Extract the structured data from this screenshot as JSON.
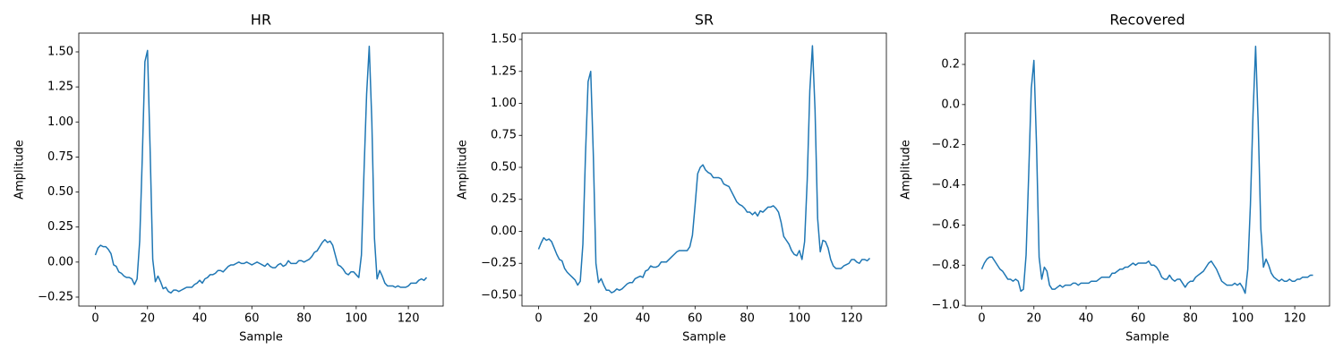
{
  "chart_data": [
    {
      "type": "line",
      "title": "HR",
      "xlabel": "Sample",
      "ylabel": "Amplitude",
      "color": "#1f77b4",
      "x": [
        0,
        1,
        2,
        3,
        4,
        5,
        6,
        7,
        8,
        9,
        10,
        11,
        12,
        13,
        14,
        15,
        16,
        17,
        18,
        19,
        20,
        21,
        22,
        23,
        24,
        25,
        26,
        27,
        28,
        29,
        30,
        31,
        32,
        33,
        34,
        35,
        36,
        37,
        38,
        39,
        40,
        41,
        42,
        43,
        44,
        45,
        46,
        47,
        48,
        49,
        50,
        51,
        52,
        53,
        54,
        55,
        56,
        57,
        58,
        59,
        60,
        61,
        62,
        63,
        64,
        65,
        66,
        67,
        68,
        69,
        70,
        71,
        72,
        73,
        74,
        75,
        76,
        77,
        78,
        79,
        80,
        81,
        82,
        83,
        84,
        85,
        86,
        87,
        88,
        89,
        90,
        91,
        92,
        93,
        94,
        95,
        96,
        97,
        98,
        99,
        100,
        101,
        102,
        103,
        104,
        105,
        106,
        107,
        108,
        109,
        110,
        111,
        112,
        113,
        114,
        115,
        116,
        117,
        118,
        119,
        120,
        121,
        122,
        123,
        124,
        125,
        126,
        127
      ],
      "values": [
        0.05,
        0.1,
        0.12,
        0.11,
        0.11,
        0.09,
        0.06,
        -0.02,
        -0.03,
        -0.07,
        -0.08,
        -0.1,
        -0.11,
        -0.11,
        -0.12,
        -0.16,
        -0.12,
        0.15,
        0.75,
        1.43,
        1.51,
        0.8,
        0.02,
        -0.14,
        -0.1,
        -0.14,
        -0.19,
        -0.18,
        -0.21,
        -0.22,
        -0.2,
        -0.2,
        -0.21,
        -0.2,
        -0.19,
        -0.18,
        -0.18,
        -0.18,
        -0.16,
        -0.15,
        -0.13,
        -0.15,
        -0.12,
        -0.11,
        -0.09,
        -0.09,
        -0.08,
        -0.06,
        -0.06,
        -0.07,
        -0.05,
        -0.03,
        -0.02,
        -0.02,
        -0.01,
        0.0,
        -0.01,
        -0.01,
        0.0,
        -0.01,
        -0.02,
        -0.01,
        0.0,
        -0.01,
        -0.02,
        -0.03,
        -0.01,
        -0.03,
        -0.04,
        -0.04,
        -0.02,
        -0.01,
        -0.03,
        -0.02,
        0.01,
        -0.01,
        -0.01,
        -0.01,
        0.01,
        0.01,
        0.0,
        0.01,
        0.02,
        0.04,
        0.07,
        0.08,
        0.11,
        0.14,
        0.16,
        0.14,
        0.15,
        0.12,
        0.05,
        -0.02,
        -0.03,
        -0.05,
        -0.08,
        -0.09,
        -0.07,
        -0.07,
        -0.09,
        -0.11,
        0.05,
        0.65,
        1.2,
        1.54,
        1.0,
        0.17,
        -0.12,
        -0.06,
        -0.1,
        -0.15,
        -0.17,
        -0.17,
        -0.17,
        -0.18,
        -0.17,
        -0.18,
        -0.18,
        -0.18,
        -0.17,
        -0.15,
        -0.15,
        -0.15,
        -0.13,
        -0.12,
        -0.13,
        -0.11
      ],
      "xlim": [
        -6.35,
        133.35
      ],
      "xticks": [
        0,
        20,
        40,
        60,
        80,
        100,
        120
      ],
      "ylim": [
        -0.314,
        1.634
      ],
      "yticks": [
        {
          "value": -0.25,
          "label": "−0.25"
        },
        {
          "value": 0,
          "label": "0.00"
        },
        {
          "value": 0.25,
          "label": "0.25"
        },
        {
          "value": 0.5,
          "label": "0.50"
        },
        {
          "value": 0.75,
          "label": "0.75"
        },
        {
          "value": 1,
          "label": "1.00"
        },
        {
          "value": 1.25,
          "label": "1.25"
        },
        {
          "value": 1.5,
          "label": "1.50"
        }
      ]
    },
    {
      "type": "line",
      "title": "SR",
      "xlabel": "Sample",
      "ylabel": "Amplitude",
      "color": "#1f77b4",
      "x": [
        0,
        1,
        2,
        3,
        4,
        5,
        6,
        7,
        8,
        9,
        10,
        11,
        12,
        13,
        14,
        15,
        16,
        17,
        18,
        19,
        20,
        21,
        22,
        23,
        24,
        25,
        26,
        27,
        28,
        29,
        30,
        31,
        32,
        33,
        34,
        35,
        36,
        37,
        38,
        39,
        40,
        41,
        42,
        43,
        44,
        45,
        46,
        47,
        48,
        49,
        50,
        51,
        52,
        53,
        54,
        55,
        56,
        57,
        58,
        59,
        60,
        61,
        62,
        63,
        64,
        65,
        66,
        67,
        68,
        69,
        70,
        71,
        72,
        73,
        74,
        75,
        76,
        77,
        78,
        79,
        80,
        81,
        82,
        83,
        84,
        85,
        86,
        87,
        88,
        89,
        90,
        91,
        92,
        93,
        94,
        95,
        96,
        97,
        98,
        99,
        100,
        101,
        102,
        103,
        104,
        105,
        106,
        107,
        108,
        109,
        110,
        111,
        112,
        113,
        114,
        115,
        116,
        117,
        118,
        119,
        120,
        121,
        122,
        123,
        124,
        125,
        126,
        127
      ],
      "values": [
        -0.14,
        -0.09,
        -0.05,
        -0.07,
        -0.06,
        -0.08,
        -0.13,
        -0.18,
        -0.22,
        -0.23,
        -0.29,
        -0.32,
        -0.34,
        -0.36,
        -0.38,
        -0.42,
        -0.39,
        -0.1,
        0.6,
        1.17,
        1.25,
        0.6,
        -0.25,
        -0.4,
        -0.37,
        -0.42,
        -0.46,
        -0.46,
        -0.48,
        -0.47,
        -0.45,
        -0.46,
        -0.45,
        -0.43,
        -0.41,
        -0.4,
        -0.4,
        -0.37,
        -0.36,
        -0.35,
        -0.36,
        -0.31,
        -0.3,
        -0.27,
        -0.28,
        -0.28,
        -0.27,
        -0.24,
        -0.24,
        -0.24,
        -0.22,
        -0.2,
        -0.18,
        -0.16,
        -0.15,
        -0.15,
        -0.15,
        -0.15,
        -0.12,
        -0.03,
        0.2,
        0.45,
        0.5,
        0.52,
        0.48,
        0.46,
        0.45,
        0.42,
        0.42,
        0.42,
        0.41,
        0.37,
        0.36,
        0.35,
        0.31,
        0.27,
        0.23,
        0.21,
        0.2,
        0.18,
        0.15,
        0.15,
        0.13,
        0.15,
        0.12,
        0.16,
        0.15,
        0.17,
        0.19,
        0.19,
        0.2,
        0.18,
        0.15,
        0.07,
        -0.04,
        -0.07,
        -0.1,
        -0.15,
        -0.18,
        -0.19,
        -0.15,
        -0.22,
        -0.08,
        0.4,
        1.1,
        1.45,
        0.95,
        0.1,
        -0.16,
        -0.07,
        -0.08,
        -0.13,
        -0.22,
        -0.27,
        -0.29,
        -0.29,
        -0.29,
        -0.27,
        -0.26,
        -0.25,
        -0.22,
        -0.22,
        -0.24,
        -0.25,
        -0.22,
        -0.22,
        -0.23,
        -0.21
      ],
      "xlim": [
        -6.35,
        133.35
      ],
      "xticks": [
        0,
        20,
        40,
        60,
        80,
        100,
        120
      ],
      "ylim": [
        -0.584,
        1.549
      ],
      "yticks": [
        {
          "value": -0.5,
          "label": "−0.50"
        },
        {
          "value": -0.25,
          "label": "−0.25"
        },
        {
          "value": 0,
          "label": "0.00"
        },
        {
          "value": 0.25,
          "label": "0.25"
        },
        {
          "value": 0.5,
          "label": "0.50"
        },
        {
          "value": 0.75,
          "label": "0.75"
        },
        {
          "value": 1,
          "label": "1.00"
        },
        {
          "value": 1.25,
          "label": "1.25"
        },
        {
          "value": 1.5,
          "label": "1.50"
        }
      ]
    },
    {
      "type": "line",
      "title": "Recovered",
      "xlabel": "Sample",
      "ylabel": "Amplitude",
      "color": "#1f77b4",
      "x": [
        0,
        1,
        2,
        3,
        4,
        5,
        6,
        7,
        8,
        9,
        10,
        11,
        12,
        13,
        14,
        15,
        16,
        17,
        18,
        19,
        20,
        21,
        22,
        23,
        24,
        25,
        26,
        27,
        28,
        29,
        30,
        31,
        32,
        33,
        34,
        35,
        36,
        37,
        38,
        39,
        40,
        41,
        42,
        43,
        44,
        45,
        46,
        47,
        48,
        49,
        50,
        51,
        52,
        53,
        54,
        55,
        56,
        57,
        58,
        59,
        60,
        61,
        62,
        63,
        64,
        65,
        66,
        67,
        68,
        69,
        70,
        71,
        72,
        73,
        74,
        75,
        76,
        77,
        78,
        79,
        80,
        81,
        82,
        83,
        84,
        85,
        86,
        87,
        88,
        89,
        90,
        91,
        92,
        93,
        94,
        95,
        96,
        97,
        98,
        99,
        100,
        101,
        102,
        103,
        104,
        105,
        106,
        107,
        108,
        109,
        110,
        111,
        112,
        113,
        114,
        115,
        116,
        117,
        118,
        119,
        120,
        121,
        122,
        123,
        124,
        125,
        126,
        127
      ],
      "values": [
        -0.82,
        -0.79,
        -0.77,
        -0.76,
        -0.76,
        -0.78,
        -0.8,
        -0.82,
        -0.83,
        -0.85,
        -0.87,
        -0.87,
        -0.88,
        -0.87,
        -0.88,
        -0.93,
        -0.92,
        -0.75,
        -0.35,
        0.08,
        0.22,
        -0.2,
        -0.76,
        -0.87,
        -0.81,
        -0.83,
        -0.9,
        -0.92,
        -0.92,
        -0.91,
        -0.9,
        -0.91,
        -0.9,
        -0.9,
        -0.9,
        -0.89,
        -0.89,
        -0.9,
        -0.89,
        -0.89,
        -0.89,
        -0.89,
        -0.88,
        -0.88,
        -0.88,
        -0.87,
        -0.86,
        -0.86,
        -0.86,
        -0.86,
        -0.84,
        -0.84,
        -0.83,
        -0.82,
        -0.82,
        -0.81,
        -0.81,
        -0.8,
        -0.79,
        -0.8,
        -0.79,
        -0.79,
        -0.79,
        -0.79,
        -0.78,
        -0.8,
        -0.8,
        -0.81,
        -0.83,
        -0.86,
        -0.87,
        -0.87,
        -0.85,
        -0.87,
        -0.88,
        -0.87,
        -0.87,
        -0.89,
        -0.91,
        -0.89,
        -0.88,
        -0.88,
        -0.86,
        -0.85,
        -0.84,
        -0.83,
        -0.81,
        -0.79,
        -0.78,
        -0.8,
        -0.82,
        -0.85,
        -0.88,
        -0.89,
        -0.9,
        -0.9,
        -0.9,
        -0.89,
        -0.9,
        -0.89,
        -0.91,
        -0.94,
        -0.82,
        -0.5,
        -0.05,
        0.29,
        -0.1,
        -0.62,
        -0.81,
        -0.77,
        -0.8,
        -0.84,
        -0.86,
        -0.87,
        -0.88,
        -0.87,
        -0.88,
        -0.88,
        -0.87,
        -0.88,
        -0.88,
        -0.87,
        -0.87,
        -0.86,
        -0.86,
        -0.86,
        -0.85,
        -0.85
      ],
      "xlim": [
        -6.35,
        133.35
      ],
      "xticks": [
        0,
        20,
        40,
        60,
        80,
        100,
        120
      ],
      "ylim": [
        -1.004,
        0.356
      ],
      "yticks": [
        {
          "value": -1,
          "label": "−1.0"
        },
        {
          "value": -0.8,
          "label": "−0.8"
        },
        {
          "value": -0.6,
          "label": "−0.6"
        },
        {
          "value": -0.4,
          "label": "−0.4"
        },
        {
          "value": -0.2,
          "label": "−0.2"
        },
        {
          "value": 0,
          "label": "0.0"
        },
        {
          "value": 0.2,
          "label": "0.2"
        }
      ]
    }
  ]
}
